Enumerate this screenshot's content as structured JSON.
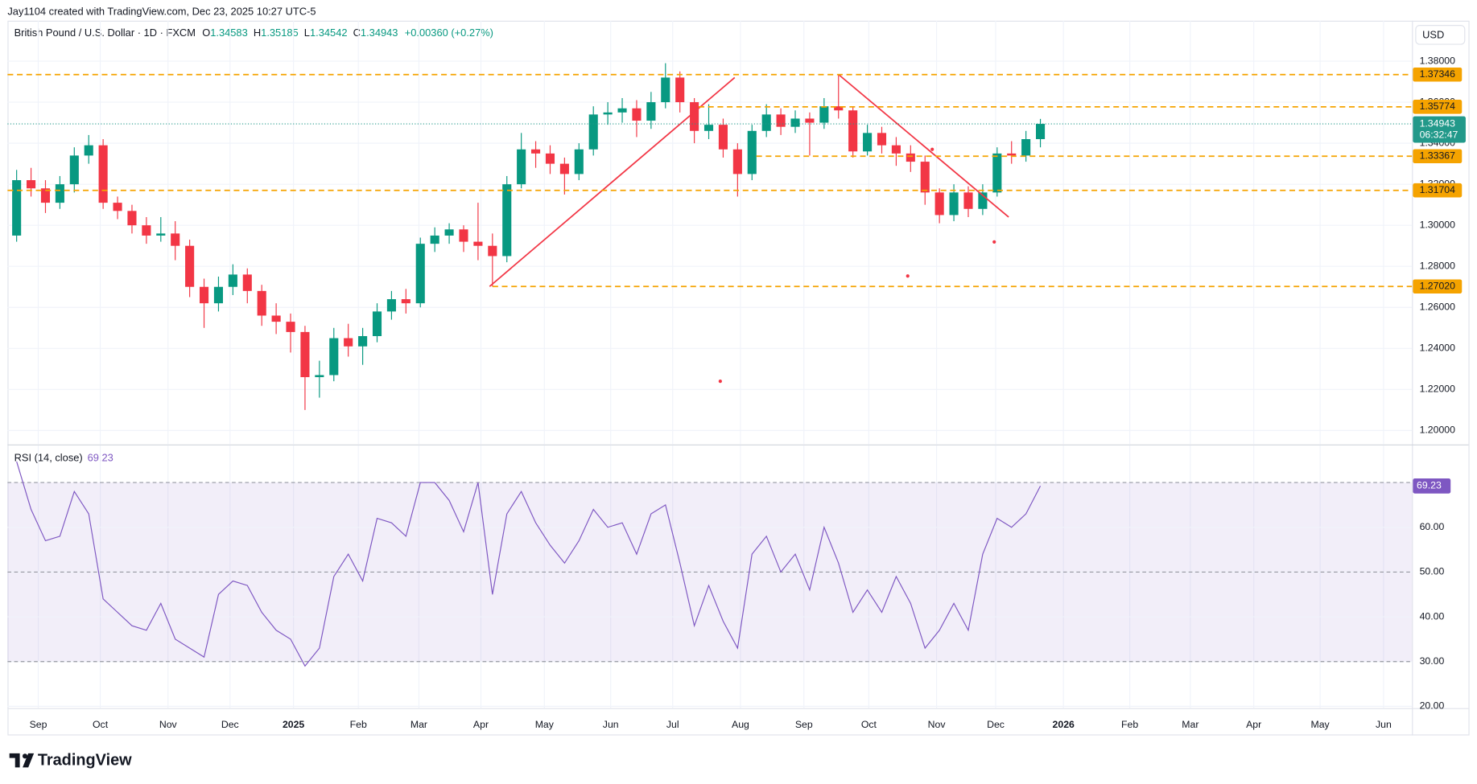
{
  "header": {
    "attribution": "Jay1104 created with TradingView.com, Dec 23, 2025 10:27 UTC-5",
    "symbol": "British Pound / U.S. Dollar · 1D · FXCM",
    "ohlc": [
      {
        "key": "O",
        "value": "1.34583"
      },
      {
        "key": "H",
        "value": "1.35185"
      },
      {
        "key": "L",
        "value": "1.34542"
      },
      {
        "key": "C",
        "value": "1.34943"
      }
    ],
    "change": "+0.00360 (+0.27%)",
    "currency": "USD",
    "countdown": "06:32:47",
    "brand": "TradingView"
  },
  "chart_data": [
    {
      "type": "candlestick",
      "categories": [
        null,
        null,
        null,
        null,
        null,
        null,
        null,
        null,
        null,
        null,
        null,
        null,
        null,
        null,
        null,
        null,
        null,
        null,
        null,
        null,
        null,
        null,
        null,
        null,
        null,
        null,
        null,
        null,
        null,
        null,
        null,
        null,
        null,
        null,
        null,
        null,
        null,
        null,
        null,
        null,
        null,
        null,
        null,
        null,
        null,
        null,
        null,
        null,
        null,
        null,
        null,
        null,
        null,
        null,
        null,
        null,
        null,
        null,
        null,
        null,
        null,
        null,
        null,
        null,
        null,
        null,
        null,
        null,
        null,
        null,
        null,
        null
      ],
      "open": [
        1.295,
        1.322,
        1.318,
        1.311,
        1.32,
        1.334,
        1.339,
        1.311,
        1.307,
        1.3,
        1.295,
        1.296,
        1.29,
        1.27,
        1.262,
        1.27,
        1.276,
        1.268,
        1.256,
        1.253,
        1.248,
        1.226,
        1.227,
        1.245,
        1.241,
        1.246,
        1.258,
        1.264,
        1.262,
        1.291,
        1.295,
        1.298,
        1.292,
        1.29,
        1.285,
        1.32,
        1.337,
        1.335,
        1.33,
        1.325,
        1.337,
        1.354,
        1.355,
        1.357,
        1.351,
        1.36,
        1.372,
        1.36,
        1.346,
        1.349,
        1.337,
        1.325,
        1.346,
        1.354,
        1.348,
        1.352,
        1.35,
        1.358,
        1.356,
        1.336,
        1.345,
        1.339,
        1.335,
        1.331,
        1.316,
        1.305,
        1.316,
        1.308,
        1.316,
        1.335,
        1.334,
        1.342
      ],
      "high": [
        1.327,
        1.328,
        1.322,
        1.324,
        1.338,
        1.344,
        1.342,
        1.314,
        1.31,
        1.304,
        1.304,
        1.302,
        1.293,
        1.274,
        1.275,
        1.281,
        1.279,
        1.271,
        1.262,
        1.257,
        1.251,
        1.234,
        1.25,
        1.252,
        1.25,
        1.262,
        1.268,
        1.269,
        1.294,
        1.299,
        1.301,
        1.3,
        1.311,
        1.296,
        1.324,
        1.345,
        1.341,
        1.339,
        1.333,
        1.34,
        1.358,
        1.36,
        1.362,
        1.361,
        1.365,
        1.379,
        1.375,
        1.362,
        1.359,
        1.352,
        1.34,
        1.349,
        1.359,
        1.357,
        1.356,
        1.355,
        1.362,
        1.3735,
        1.358,
        1.349,
        1.348,
        1.343,
        1.339,
        1.334,
        1.318,
        1.32,
        1.319,
        1.32,
        1.338,
        1.341,
        1.346,
        1.35185
      ],
      "low": [
        1.292,
        1.314,
        1.306,
        1.308,
        1.316,
        1.33,
        1.308,
        1.303,
        1.296,
        1.291,
        1.292,
        1.283,
        1.265,
        1.25,
        1.258,
        1.266,
        1.262,
        1.251,
        1.247,
        1.238,
        1.21,
        1.216,
        1.224,
        1.236,
        1.232,
        1.243,
        1.254,
        1.257,
        1.26,
        1.287,
        1.291,
        1.287,
        1.283,
        1.2702,
        1.282,
        1.318,
        1.328,
        1.325,
        1.315,
        1.322,
        1.334,
        1.349,
        1.35,
        1.343,
        1.347,
        1.357,
        1.355,
        1.34,
        1.342,
        1.333,
        1.314,
        1.322,
        1.343,
        1.344,
        1.345,
        1.334,
        1.347,
        1.352,
        1.333,
        1.334,
        1.335,
        1.329,
        1.326,
        1.31,
        1.301,
        1.302,
        1.304,
        1.305,
        1.314,
        1.33,
        1.331,
        1.338
      ],
      "close": [
        1.322,
        1.318,
        1.311,
        1.32,
        1.334,
        1.339,
        1.311,
        1.307,
        1.3,
        1.295,
        1.296,
        1.29,
        1.27,
        1.262,
        1.27,
        1.276,
        1.268,
        1.256,
        1.253,
        1.248,
        1.226,
        1.227,
        1.245,
        1.241,
        1.246,
        1.258,
        1.264,
        1.262,
        1.291,
        1.295,
        1.298,
        1.292,
        1.29,
        1.285,
        1.32,
        1.337,
        1.335,
        1.33,
        1.325,
        1.337,
        1.354,
        1.355,
        1.357,
        1.351,
        1.36,
        1.372,
        1.36,
        1.346,
        1.349,
        1.337,
        1.325,
        1.346,
        1.354,
        1.348,
        1.352,
        1.35,
        1.358,
        1.356,
        1.336,
        1.345,
        1.339,
        1.335,
        1.331,
        1.316,
        1.305,
        1.316,
        1.308,
        1.316,
        1.335,
        1.334,
        1.342,
        1.34943
      ],
      "up_color": "#089981",
      "down_color": "#f23645",
      "xlim": [
        -0.13,
        97.27
      ],
      "xticks": [
        {
          "value": 2,
          "label": "Sep"
        },
        {
          "value": 6.3,
          "label": "Oct"
        },
        {
          "value": 11,
          "label": "Nov"
        },
        {
          "value": 15.3,
          "label": "Dec"
        },
        {
          "value": 19.7,
          "label": "2025",
          "bold": true
        },
        {
          "value": 24.2,
          "label": "Feb"
        },
        {
          "value": 28.4,
          "label": "Mar"
        },
        {
          "value": 32.7,
          "label": "Apr"
        },
        {
          "value": 37.1,
          "label": "May"
        },
        {
          "value": 41.7,
          "label": "Jun"
        },
        {
          "value": 46,
          "label": "Jul"
        },
        {
          "value": 50.7,
          "label": "Aug"
        },
        {
          "value": 55.1,
          "label": "Sep"
        },
        {
          "value": 59.6,
          "label": "Oct"
        },
        {
          "value": 64.3,
          "label": "Nov"
        },
        {
          "value": 68.4,
          "label": "Dec"
        },
        {
          "value": 73.1,
          "label": "2026",
          "bold": true
        },
        {
          "value": 77.7,
          "label": "Feb"
        },
        {
          "value": 81.9,
          "label": "Mar"
        },
        {
          "value": 86.3,
          "label": "Apr"
        },
        {
          "value": 90.9,
          "label": "May"
        },
        {
          "value": 95.3,
          "label": "Jun"
        }
      ],
      "ylim": [
        1.1932,
        1.3997
      ],
      "yticks": [
        {
          "value": 1.2,
          "label": "1.20000"
        },
        {
          "value": 1.22,
          "label": "1.22000"
        },
        {
          "value": 1.24,
          "label": "1.24000"
        },
        {
          "value": 1.26,
          "label": "1.26000"
        },
        {
          "value": 1.28,
          "label": "1.28000"
        },
        {
          "value": 1.3,
          "label": "1.30000"
        },
        {
          "value": 1.32,
          "label": "1.32000"
        },
        {
          "value": 1.34,
          "label": "1.34000"
        },
        {
          "value": 1.36,
          "label": "1.36000"
        },
        {
          "value": 1.38,
          "label": "1.38000"
        }
      ],
      "grid": true,
      "levels": [
        {
          "value": 1.37346,
          "label": "1.37346"
        },
        {
          "value": 1.35774,
          "label": "1.35774",
          "from": 47.8
        },
        {
          "value": 1.33367,
          "label": "1.33367",
          "from": 51.8
        },
        {
          "value": 1.31704,
          "label": "1.31704"
        },
        {
          "value": 1.2702,
          "label": "1.27020",
          "from": 33.5
        }
      ],
      "level_color": "#f5a300",
      "trendlines": [
        {
          "x": [
            33.3,
            50.3
          ],
          "y": [
            1.2702,
            1.372
          ]
        },
        {
          "x": [
            57.5,
            69.3
          ],
          "y": [
            1.3735,
            1.304
          ]
        }
      ],
      "trend_color": "#f23645",
      "markers": {
        "x": [
          49.3,
          62.3,
          68.3,
          64.0
        ],
        "y": [
          1.224,
          1.2753,
          1.2919,
          1.337
        ],
        "color": "#f23645"
      },
      "last_color": "#22998a"
    },
    {
      "type": "line",
      "title": "RSI (14, close)",
      "values": [
        74.7,
        64,
        57,
        58,
        68,
        63,
        44,
        41,
        38,
        37,
        43,
        35,
        33,
        31,
        45,
        48,
        47,
        41,
        37,
        35,
        29,
        33,
        49,
        54,
        48,
        62,
        61,
        58,
        70,
        70,
        66,
        59,
        70,
        45,
        63,
        68,
        61,
        56,
        52,
        57,
        64,
        60,
        61,
        54,
        63,
        65,
        52,
        38,
        47,
        39,
        33,
        54,
        58,
        50,
        54,
        46,
        60,
        52,
        41,
        46,
        41,
        49,
        43,
        33,
        37,
        43,
        37,
        54,
        62,
        60,
        63,
        69.23
      ],
      "color": "#7e57c2",
      "ylim": [
        19.6,
        78.3
      ],
      "yticks": [
        {
          "value": 20,
          "label": "20.00"
        },
        {
          "value": 30,
          "label": "30.00"
        },
        {
          "value": 40,
          "label": "40.00"
        },
        {
          "value": 50,
          "label": "50.00"
        },
        {
          "value": 60,
          "label": "60.00"
        }
      ],
      "band": [
        30,
        70
      ],
      "guides": [
        30,
        50,
        70
      ]
    }
  ]
}
